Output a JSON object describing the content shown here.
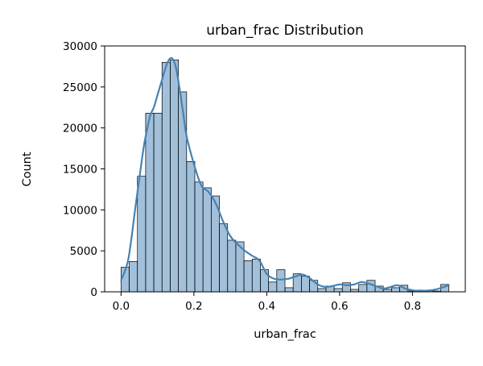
{
  "chart_data": {
    "type": "bar",
    "title": "urban_frac Distribution",
    "xlabel": "urban_frac",
    "ylabel": "Count",
    "xlim": [
      -0.045,
      0.945
    ],
    "ylim": [
      0,
      30000
    ],
    "xticks": [
      0.0,
      0.2,
      0.4,
      0.6,
      0.8
    ],
    "xtick_labels": [
      "0.0",
      "0.2",
      "0.4",
      "0.6",
      "0.8"
    ],
    "yticks": [
      0,
      5000,
      10000,
      15000,
      20000,
      25000,
      30000
    ],
    "ytick_labels": [
      "0",
      "5000",
      "10000",
      "15000",
      "20000",
      "25000",
      "30000"
    ],
    "grid": false,
    "bar_color": "#4682b4",
    "bar_edge_color": "#000000",
    "kde_color": "#4682b4",
    "bins": {
      "start": 0.0,
      "width": 0.0225,
      "counts": [
        3000,
        3700,
        14100,
        21800,
        21800,
        28000,
        28300,
        24400,
        15900,
        13400,
        12700,
        11700,
        8300,
        6300,
        6100,
        3800,
        4000,
        2700,
        1200,
        2700,
        500,
        2200,
        1900,
        1400,
        400,
        700,
        400,
        1100,
        300,
        900,
        1400,
        700,
        300,
        500,
        800,
        100,
        200,
        150,
        100,
        900
      ]
    },
    "kde": {
      "x": [
        0.0,
        0.02,
        0.04,
        0.06,
        0.07,
        0.08,
        0.09,
        0.1,
        0.11,
        0.12,
        0.13,
        0.14,
        0.15,
        0.16,
        0.17,
        0.18,
        0.2,
        0.22,
        0.24,
        0.26,
        0.28,
        0.3,
        0.32,
        0.34,
        0.36,
        0.38,
        0.4,
        0.42,
        0.44,
        0.46,
        0.48,
        0.5,
        0.52,
        0.54,
        0.56,
        0.58,
        0.6,
        0.62,
        0.64,
        0.66,
        0.68,
        0.7,
        0.72,
        0.74,
        0.76,
        0.78,
        0.8,
        0.82,
        0.84,
        0.86,
        0.88,
        0.9
      ],
      "y": [
        1400,
        4000,
        10500,
        17000,
        19500,
        21500,
        22500,
        24000,
        25500,
        27000,
        28200,
        28500,
        27500,
        25000,
        22000,
        19000,
        15600,
        13000,
        12200,
        10800,
        8600,
        6800,
        5800,
        5000,
        4400,
        3800,
        2200,
        1600,
        1500,
        1600,
        1900,
        2100,
        1600,
        900,
        600,
        700,
        900,
        800,
        900,
        1200,
        1000,
        700,
        400,
        600,
        800,
        400,
        200,
        100,
        150,
        250,
        500,
        800
      ]
    }
  }
}
